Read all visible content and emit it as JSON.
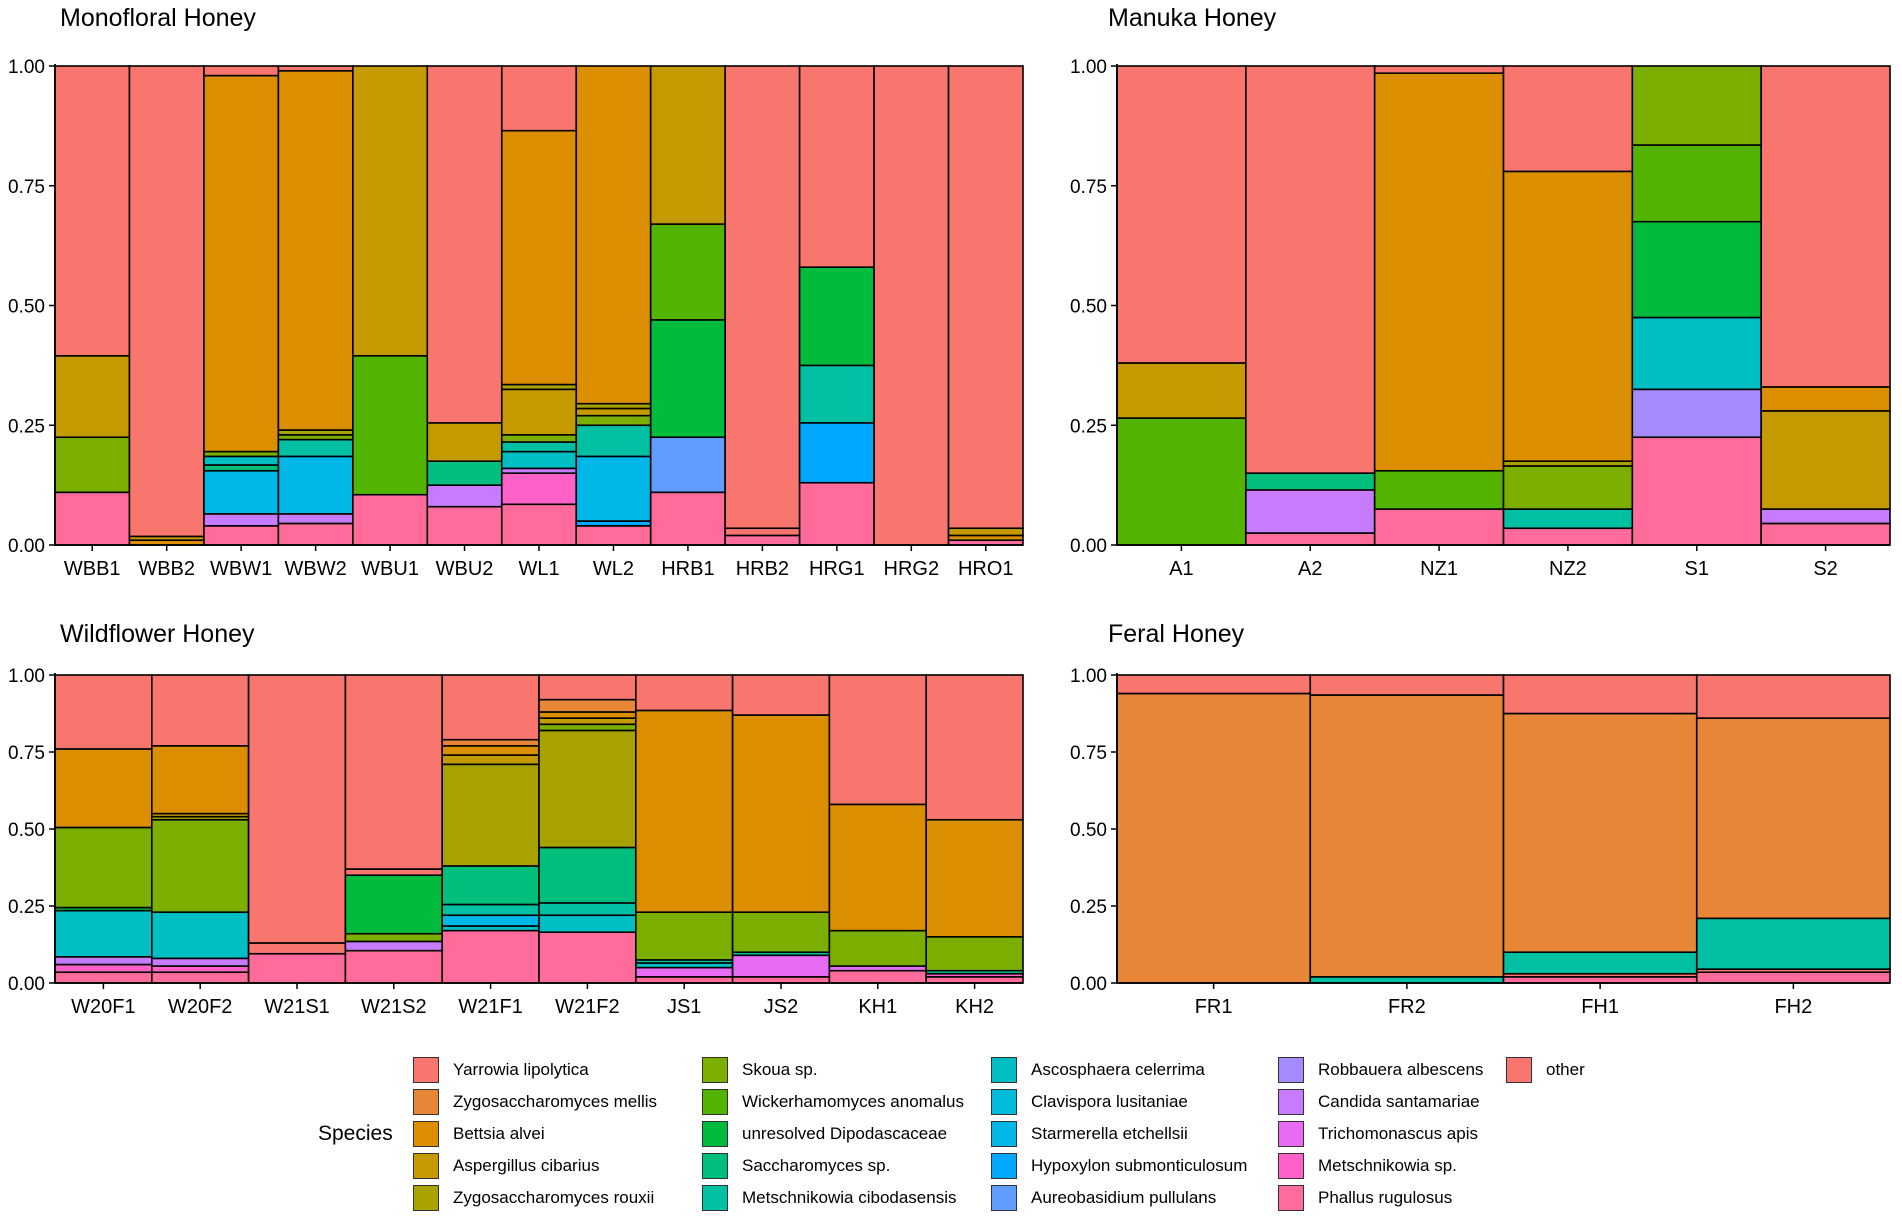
{
  "colors": {
    "Yarrowia lipolytica": "#F8766D",
    "Zygosaccharomyces mellis": "#E88638",
    "Bettsia alvei": "#DB8E00",
    "Aspergillus cibarius": "#C49A00",
    "Zygosaccharomyces rouxii": "#A8A200",
    "Skoua sp.": "#7CAE00",
    "Wickerhamomyces anomalus": "#53B400",
    "unresolved Dipodascaceae": "#00BB3C",
    "Saccharomyces sp.": "#00BF7D",
    "Metschnikowia cibodasensis": "#00C0A3",
    "Ascosphaera celerrima": "#00BFC4",
    "Clavispora lusitaniae": "#00BBDA",
    "Starmerella etchellsii": "#00B8E7",
    "Hypoxylon submonticulosum": "#00A9FF",
    "Aureobasidium pullulans": "#619CFF",
    "Robbauera albescens": "#A58AFF",
    "Candida santamariae": "#C77CFF",
    "Trichomonascus apis": "#E76BF3",
    "Metschnikowia sp.": "#FF61C9",
    "Phallus rugulosus": "#FF6C9C",
    "other": "#F8766D",
    "border": "#000000"
  },
  "legend": {
    "title": "Species",
    "entries": [
      "Yarrowia lipolytica",
      "Zygosaccharomyces mellis",
      "Bettsia alvei",
      "Aspergillus cibarius",
      "Zygosaccharomyces rouxii",
      "Skoua sp.",
      "Wickerhamomyces anomalus",
      "unresolved Dipodascaceae",
      "Saccharomyces sp.",
      "Metschnikowia cibodasensis",
      "Ascosphaera celerrima",
      "Clavispora lusitaniae",
      "Starmerella etchellsii",
      "Hypoxylon submonticulosum",
      "Aureobasidium pullulans",
      "Robbauera albescens",
      "Candida santamariae",
      "Trichomonascus apis",
      "Metschnikowia sp.",
      "Phallus rugulosus",
      "other"
    ]
  },
  "chart_data": [
    {
      "type": "bar",
      "stacked": true,
      "title": "Monofloral Honey",
      "ylim": [
        0,
        1
      ],
      "yticks": [
        "0.00",
        "0.25",
        "0.50",
        "0.75",
        "1.00"
      ],
      "categories": [
        "WBB1",
        "WBB2",
        "WBW1",
        "WBW2",
        "WBU1",
        "WBU2",
        "WL1",
        "WL2",
        "HRB1",
        "HRB2",
        "HRG1",
        "HRG2",
        "HRO1"
      ],
      "stacks": [
        [
          [
            "Phallus rugulosus",
            0.11
          ],
          [
            "Skoua sp.",
            0.115
          ],
          [
            "Aspergillus cibarius",
            0.17
          ],
          [
            "Yarrowia lipolytica",
            0.605
          ]
        ],
        [
          [
            "Bettsia alvei",
            0.01
          ],
          [
            "Aspergillus cibarius",
            0.008
          ],
          [
            "Yarrowia lipolytica",
            0.982
          ]
        ],
        [
          [
            "Phallus rugulosus",
            0.04
          ],
          [
            "Candida santamariae",
            0.025
          ],
          [
            "Starmerella etchellsii",
            0.09
          ],
          [
            "Saccharomyces sp.",
            0.012
          ],
          [
            "Ascosphaera celerrima",
            0.018
          ],
          [
            "Skoua sp.",
            0.01
          ],
          [
            "Bettsia alvei",
            0.785
          ],
          [
            "Yarrowia lipolytica",
            0.02
          ]
        ],
        [
          [
            "Phallus rugulosus",
            0.045
          ],
          [
            "Candida santamariae",
            0.02
          ],
          [
            "Starmerella etchellsii",
            0.12
          ],
          [
            "Metschnikowia cibodasensis",
            0.035
          ],
          [
            "Skoua sp.",
            0.01
          ],
          [
            "Zygosaccharomyces rouxii",
            0.01
          ],
          [
            "Bettsia alvei",
            0.75
          ],
          [
            "Yarrowia lipolytica",
            0.01
          ]
        ],
        [
          [
            "Phallus rugulosus",
            0.105
          ],
          [
            "Wickerhamomyces anomalus",
            0.29
          ],
          [
            "Aspergillus cibarius",
            0.605
          ]
        ],
        [
          [
            "Phallus rugulosus",
            0.08
          ],
          [
            "Candida santamariae",
            0.045
          ],
          [
            "Saccharomyces sp.",
            0.05
          ],
          [
            "Aspergillus cibarius",
            0.08
          ],
          [
            "Yarrowia lipolytica",
            0.745
          ]
        ],
        [
          [
            "Phallus rugulosus",
            0.085
          ],
          [
            "Metschnikowia sp.",
            0.065
          ],
          [
            "Candida santamariae",
            0.01
          ],
          [
            "Ascosphaera celerrima",
            0.035
          ],
          [
            "Metschnikowia cibodasensis",
            0.02
          ],
          [
            "Skoua sp.",
            0.015
          ],
          [
            "Aspergillus cibarius",
            0.095
          ],
          [
            "Zygosaccharomyces rouxii",
            0.01
          ],
          [
            "Bettsia alvei",
            0.53
          ],
          [
            "Yarrowia lipolytica",
            0.135
          ]
        ],
        [
          [
            "Phallus rugulosus",
            0.04
          ],
          [
            "Hypoxylon submonticulosum",
            0.01
          ],
          [
            "Starmerella etchellsii",
            0.135
          ],
          [
            "Metschnikowia cibodasensis",
            0.065
          ],
          [
            "Skoua sp.",
            0.02
          ],
          [
            "Aspergillus cibarius",
            0.015
          ],
          [
            "Zygosaccharomyces rouxii",
            0.01
          ],
          [
            "Bettsia alvei",
            0.705
          ]
        ],
        [
          [
            "Phallus rugulosus",
            0.11
          ],
          [
            "Aureobasidium pullulans",
            0.115
          ],
          [
            "unresolved Dipodascaceae",
            0.245
          ],
          [
            "Wickerhamomyces anomalus",
            0.2
          ],
          [
            "Aspergillus cibarius",
            0.33
          ]
        ],
        [
          [
            "Phallus rugulosus",
            0.02
          ],
          [
            "other",
            0.015
          ],
          [
            "Yarrowia lipolytica",
            0.965
          ]
        ],
        [
          [
            "Phallus rugulosus",
            0.13
          ],
          [
            "Hypoxylon submonticulosum",
            0.125
          ],
          [
            "Metschnikowia cibodasensis",
            0.12
          ],
          [
            "unresolved Dipodascaceae",
            0.205
          ],
          [
            "Yarrowia lipolytica",
            0.42
          ]
        ],
        [
          [
            "Yarrowia lipolytica",
            1.0
          ]
        ],
        [
          [
            "Phallus rugulosus",
            0.01
          ],
          [
            "Bettsia alvei",
            0.01
          ],
          [
            "Aspergillus cibarius",
            0.015
          ],
          [
            "Yarrowia lipolytica",
            0.965
          ]
        ]
      ]
    },
    {
      "type": "bar",
      "stacked": true,
      "title": "Manuka Honey",
      "ylim": [
        0,
        1
      ],
      "yticks": [
        "0.00",
        "0.25",
        "0.50",
        "0.75",
        "1.00"
      ],
      "categories": [
        "A1",
        "A2",
        "NZ1",
        "NZ2",
        "S1",
        "S2"
      ],
      "stacks": [
        [
          [
            "Wickerhamomyces anomalus",
            0.265
          ],
          [
            "Aspergillus cibarius",
            0.115
          ],
          [
            "Yarrowia lipolytica",
            0.62
          ]
        ],
        [
          [
            "Phallus rugulosus",
            0.025
          ],
          [
            "Candida santamariae",
            0.09
          ],
          [
            "Saccharomyces sp.",
            0.035
          ],
          [
            "Yarrowia lipolytica",
            0.85
          ]
        ],
        [
          [
            "Phallus rugulosus",
            0.075
          ],
          [
            "Wickerhamomyces anomalus",
            0.08
          ],
          [
            "Bettsia alvei",
            0.83
          ],
          [
            "Yarrowia lipolytica",
            0.015
          ]
        ],
        [
          [
            "Phallus rugulosus",
            0.035
          ],
          [
            "Metschnikowia cibodasensis",
            0.04
          ],
          [
            "Skoua sp.",
            0.09
          ],
          [
            "Zygosaccharomyces rouxii",
            0.01
          ],
          [
            "Bettsia alvei",
            0.605
          ],
          [
            "Yarrowia lipolytica",
            0.22
          ]
        ],
        [
          [
            "Phallus rugulosus",
            0.225
          ],
          [
            "Robbauera albescens",
            0.1
          ],
          [
            "Ascosphaera celerrima",
            0.15
          ],
          [
            "unresolved Dipodascaceae",
            0.2
          ],
          [
            "Wickerhamomyces anomalus",
            0.16
          ],
          [
            "Skoua sp.",
            0.165
          ]
        ],
        [
          [
            "Phallus rugulosus",
            0.045
          ],
          [
            "Candida santamariae",
            0.03
          ],
          [
            "Aspergillus cibarius",
            0.205
          ],
          [
            "Bettsia alvei",
            0.05
          ],
          [
            "Yarrowia lipolytica",
            0.67
          ]
        ]
      ]
    },
    {
      "type": "bar",
      "stacked": true,
      "title": "Wildflower Honey",
      "ylim": [
        0,
        1
      ],
      "yticks": [
        "0.00",
        "0.25",
        "0.50",
        "0.75",
        "1.00"
      ],
      "categories": [
        "W20F1",
        "W20F2",
        "W21S1",
        "W21S2",
        "W21F1",
        "W21F2",
        "JS1",
        "JS2",
        "KH1",
        "KH2"
      ],
      "stacks": [
        [
          [
            "Phallus rugulosus",
            0.035
          ],
          [
            "Metschnikowia sp.",
            0.025
          ],
          [
            "Candida santamariae",
            0.025
          ],
          [
            "Ascosphaera celerrima",
            0.15
          ],
          [
            "unresolved Dipodascaceae",
            0.01
          ],
          [
            "Skoua sp.",
            0.26
          ],
          [
            "Bettsia alvei",
            0.255
          ],
          [
            "Yarrowia lipolytica",
            0.24
          ]
        ],
        [
          [
            "Phallus rugulosus",
            0.035
          ],
          [
            "Metschnikowia sp.",
            0.02
          ],
          [
            "Candida santamariae",
            0.025
          ],
          [
            "Ascosphaera celerrima",
            0.15
          ],
          [
            "Skoua sp.",
            0.3
          ],
          [
            "Zygosaccharomyces rouxii",
            0.01
          ],
          [
            "Aspergillus cibarius",
            0.01
          ],
          [
            "Bettsia alvei",
            0.22
          ],
          [
            "Yarrowia lipolytica",
            0.23
          ]
        ],
        [
          [
            "Phallus rugulosus",
            0.095
          ],
          [
            "other",
            0.035
          ],
          [
            "Yarrowia lipolytica",
            0.87
          ]
        ],
        [
          [
            "Phallus rugulosus",
            0.105
          ],
          [
            "Candida santamariae",
            0.03
          ],
          [
            "Skoua sp.",
            0.025
          ],
          [
            "unresolved Dipodascaceae",
            0.19
          ],
          [
            "other",
            0.02
          ],
          [
            "Yarrowia lipolytica",
            0.63
          ]
        ],
        [
          [
            "Phallus rugulosus",
            0.17
          ],
          [
            "Ascosphaera celerrima",
            0.015
          ],
          [
            "Starmerella etchellsii",
            0.035
          ],
          [
            "Metschnikowia cibodasensis",
            0.035
          ],
          [
            "Saccharomyces sp.",
            0.125
          ],
          [
            "Zygosaccharomyces rouxii",
            0.33
          ],
          [
            "Aspergillus cibarius",
            0.03
          ],
          [
            "Bettsia alvei",
            0.03
          ],
          [
            "Zygosaccharomyces mellis",
            0.02
          ],
          [
            "Yarrowia lipolytica",
            0.21
          ]
        ],
        [
          [
            "Phallus rugulosus",
            0.165
          ],
          [
            "Ascosphaera celerrima",
            0.055
          ],
          [
            "Metschnikowia cibodasensis",
            0.04
          ],
          [
            "Saccharomyces sp.",
            0.18
          ],
          [
            "Zygosaccharomyces rouxii",
            0.38
          ],
          [
            "Skoua sp.",
            0.02
          ],
          [
            "Aspergillus cibarius",
            0.02
          ],
          [
            "Bettsia alvei",
            0.02
          ],
          [
            "Zygosaccharomyces mellis",
            0.04
          ],
          [
            "Yarrowia lipolytica",
            0.08
          ]
        ],
        [
          [
            "Phallus rugulosus",
            0.02
          ],
          [
            "Trichomonascus apis",
            0.03
          ],
          [
            "Ascosphaera celerrima",
            0.015
          ],
          [
            "Metschnikowia cibodasensis",
            0.01
          ],
          [
            "Skoua sp.",
            0.155
          ],
          [
            "Bettsia alvei",
            0.655
          ],
          [
            "Yarrowia lipolytica",
            0.115
          ]
        ],
        [
          [
            "Phallus rugulosus",
            0.02
          ],
          [
            "Trichomonascus apis",
            0.07
          ],
          [
            "Metschnikowia cibodasensis",
            0.01
          ],
          [
            "Skoua sp.",
            0.13
          ],
          [
            "Bettsia alvei",
            0.64
          ],
          [
            "Yarrowia lipolytica",
            0.13
          ]
        ],
        [
          [
            "Phallus rugulosus",
            0.04
          ],
          [
            "Trichomonascus apis",
            0.015
          ],
          [
            "Skoua sp.",
            0.115
          ],
          [
            "Bettsia alvei",
            0.41
          ],
          [
            "Yarrowia lipolytica",
            0.42
          ]
        ],
        [
          [
            "Phallus rugulosus",
            0.02
          ],
          [
            "Metschnikowia sp.",
            0.01
          ],
          [
            "Saccharomyces sp.",
            0.01
          ],
          [
            "Skoua sp.",
            0.11
          ],
          [
            "Bettsia alvei",
            0.38
          ],
          [
            "Yarrowia lipolytica",
            0.47
          ]
        ]
      ]
    },
    {
      "type": "bar",
      "stacked": true,
      "title": "Feral Honey",
      "ylim": [
        0,
        1
      ],
      "yticks": [
        "0.00",
        "0.25",
        "0.50",
        "0.75",
        "1.00"
      ],
      "categories": [
        "FR1",
        "FR2",
        "FH1",
        "FH2"
      ],
      "stacks": [
        [
          [
            "Zygosaccharomyces mellis",
            0.94
          ],
          [
            "Yarrowia lipolytica",
            0.06
          ]
        ],
        [
          [
            "Metschnikowia cibodasensis",
            0.02
          ],
          [
            "Zygosaccharomyces mellis",
            0.915
          ],
          [
            "Yarrowia lipolytica",
            0.065
          ]
        ],
        [
          [
            "Phallus rugulosus",
            0.02
          ],
          [
            "other",
            0.01
          ],
          [
            "Metschnikowia cibodasensis",
            0.07
          ],
          [
            "Zygosaccharomyces mellis",
            0.775
          ],
          [
            "Yarrowia lipolytica",
            0.125
          ]
        ],
        [
          [
            "Phallus rugulosus",
            0.035
          ],
          [
            "other",
            0.01
          ],
          [
            "Metschnikowia cibodasensis",
            0.165
          ],
          [
            "Zygosaccharomyces mellis",
            0.65
          ],
          [
            "Yarrowia lipolytica",
            0.14
          ]
        ]
      ]
    }
  ]
}
